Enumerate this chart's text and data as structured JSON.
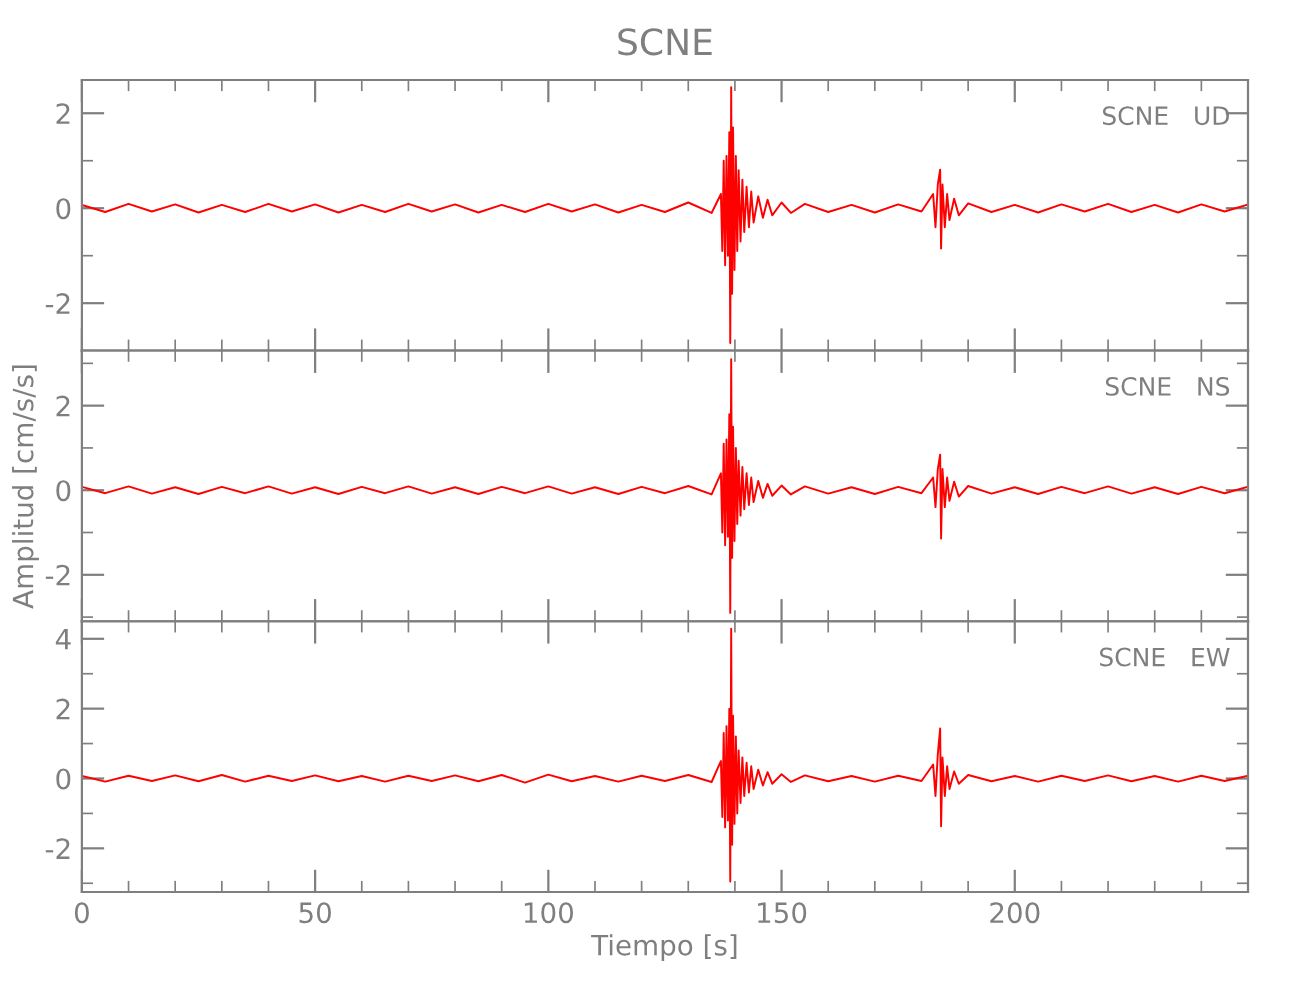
{
  "chart_data": [
    {
      "type": "line",
      "title": "SCNE",
      "annotations": [
        "SCNE   UD"
      ],
      "tick_labels": "y",
      "xlim": [
        0,
        250
      ],
      "xticks": [
        0,
        {
          "value": 10,
          "label": null
        },
        {
          "value": 20,
          "label": null
        },
        {
          "value": 30,
          "label": null
        },
        {
          "value": 40,
          "label": null
        },
        50,
        {
          "value": 60,
          "label": null
        },
        {
          "value": 70,
          "label": null
        },
        {
          "value": 80,
          "label": null
        },
        {
          "value": 90,
          "label": null
        },
        100,
        {
          "value": 110,
          "label": null
        },
        {
          "value": 120,
          "label": null
        },
        {
          "value": 130,
          "label": null
        },
        {
          "value": 140,
          "label": null
        },
        150,
        {
          "value": 160,
          "label": null
        },
        {
          "value": 170,
          "label": null
        },
        {
          "value": 180,
          "label": null
        },
        {
          "value": 190,
          "label": null
        },
        200,
        {
          "value": 210,
          "label": null
        },
        {
          "value": 220,
          "label": null
        },
        {
          "value": 230,
          "label": null
        },
        {
          "value": 240,
          "label": null
        }
      ],
      "ylim": [
        -3,
        2.7
      ],
      "yticks": [
        {
          "value": -3,
          "label": null
        },
        -2,
        {
          "value": -1,
          "label": null
        },
        0,
        {
          "value": 1,
          "label": null
        },
        2
      ],
      "x": [
        0,
        5,
        10,
        15,
        20,
        25,
        30,
        35,
        40,
        45,
        50,
        55,
        60,
        65,
        70,
        75,
        80,
        85,
        90,
        95,
        100,
        105,
        110,
        115,
        120,
        125,
        130,
        135,
        137,
        137.3,
        137.6,
        137.9,
        138.2,
        138.5,
        138.8,
        139,
        139.2,
        139.4,
        139.6,
        139.9,
        140.2,
        140.5,
        140.8,
        141.2,
        141.6,
        142,
        142.5,
        143,
        143.5,
        144,
        145,
        146,
        147,
        148,
        150,
        152,
        155,
        160,
        165,
        170,
        175,
        180,
        182.5,
        183,
        183.5,
        184,
        184.2,
        184.5,
        185,
        185.5,
        186,
        187,
        188,
        190,
        195,
        200,
        205,
        210,
        215,
        220,
        225,
        230,
        235,
        240,
        245,
        250
      ],
      "series": [
        {
          "color": "#ff0000",
          "values": [
            0.07,
            -0.08,
            0.09,
            -0.07,
            0.08,
            -0.09,
            0.07,
            -0.08,
            0.09,
            -0.07,
            0.08,
            -0.09,
            0.07,
            -0.08,
            0.09,
            -0.07,
            0.08,
            -0.09,
            0.07,
            -0.08,
            0.09,
            -0.07,
            0.08,
            -0.09,
            0.07,
            -0.08,
            0.12,
            -0.1,
            0.3,
            -0.9,
            1.0,
            -1.2,
            1.1,
            -1.0,
            1.6,
            -2.84,
            2.55,
            -1.8,
            1.7,
            -1.3,
            1.1,
            -0.9,
            0.8,
            -0.7,
            0.6,
            -0.5,
            0.45,
            -0.4,
            0.35,
            -0.3,
            0.25,
            -0.2,
            0.18,
            -0.15,
            0.12,
            -0.1,
            0.09,
            -0.08,
            0.07,
            -0.09,
            0.08,
            -0.07,
            0.3,
            -0.4,
            0.5,
            0.81,
            -0.85,
            0.5,
            -0.4,
            0.3,
            -0.25,
            0.2,
            -0.15,
            0.1,
            -0.08,
            0.07,
            -0.09,
            0.08,
            -0.07,
            0.09,
            -0.08,
            0.07,
            -0.09,
            0.08,
            -0.07,
            0.08
          ]
        }
      ]
    },
    {
      "type": "line",
      "ylabel": "Amplitud [cm/s/s]",
      "annotations": [
        "SCNE   NS"
      ],
      "tick_labels": "y",
      "xlim": [
        0,
        250
      ],
      "xticks": [
        0,
        {
          "value": 10,
          "label": null
        },
        {
          "value": 20,
          "label": null
        },
        {
          "value": 30,
          "label": null
        },
        {
          "value": 40,
          "label": null
        },
        50,
        {
          "value": 60,
          "label": null
        },
        {
          "value": 70,
          "label": null
        },
        {
          "value": 80,
          "label": null
        },
        {
          "value": 90,
          "label": null
        },
        100,
        {
          "value": 110,
          "label": null
        },
        {
          "value": 120,
          "label": null
        },
        {
          "value": 130,
          "label": null
        },
        {
          "value": 140,
          "label": null
        },
        150,
        {
          "value": 160,
          "label": null
        },
        {
          "value": 170,
          "label": null
        },
        {
          "value": 180,
          "label": null
        },
        {
          "value": 190,
          "label": null
        },
        200,
        {
          "value": 210,
          "label": null
        },
        {
          "value": 220,
          "label": null
        },
        {
          "value": 230,
          "label": null
        },
        {
          "value": 240,
          "label": null
        }
      ],
      "ylim": [
        -3.1,
        3.3
      ],
      "yticks": [
        {
          "value": -3,
          "label": null
        },
        -2,
        {
          "value": -1,
          "label": null
        },
        0,
        {
          "value": 1,
          "label": null
        },
        2,
        {
          "value": 3,
          "label": null
        }
      ],
      "x": [
        0,
        5,
        10,
        15,
        20,
        25,
        30,
        35,
        40,
        45,
        50,
        55,
        60,
        65,
        70,
        75,
        80,
        85,
        90,
        95,
        100,
        105,
        110,
        115,
        120,
        125,
        130,
        135,
        137,
        137.3,
        137.6,
        137.9,
        138.2,
        138.5,
        138.8,
        139,
        139.2,
        139.4,
        139.6,
        139.9,
        140.2,
        140.5,
        140.8,
        141.2,
        141.6,
        142,
        142.5,
        143,
        143.5,
        144,
        145,
        146,
        147,
        148,
        150,
        152,
        155,
        160,
        165,
        170,
        175,
        180,
        182.5,
        183,
        183.5,
        184,
        184.2,
        184.5,
        185,
        185.5,
        186,
        187,
        188,
        190,
        195,
        200,
        205,
        210,
        215,
        220,
        225,
        230,
        235,
        240,
        245,
        250
      ],
      "series": [
        {
          "color": "#ff0000",
          "values": [
            0.08,
            -0.07,
            0.09,
            -0.08,
            0.07,
            -0.09,
            0.08,
            -0.07,
            0.09,
            -0.08,
            0.07,
            -0.09,
            0.08,
            -0.07,
            0.09,
            -0.08,
            0.07,
            -0.09,
            0.08,
            -0.07,
            0.09,
            -0.08,
            0.07,
            -0.09,
            0.08,
            -0.07,
            0.1,
            -0.1,
            0.4,
            -1.0,
            1.1,
            -1.3,
            1.2,
            -1.1,
            1.8,
            -2.9,
            3.1,
            -1.6,
            1.5,
            -1.2,
            1.0,
            -0.8,
            0.7,
            -0.6,
            0.55,
            -0.45,
            0.4,
            -0.35,
            0.3,
            -0.28,
            0.22,
            -0.18,
            0.15,
            -0.13,
            0.11,
            -0.1,
            0.09,
            -0.08,
            0.07,
            -0.09,
            0.08,
            -0.07,
            0.3,
            -0.4,
            0.5,
            0.84,
            -1.14,
            0.5,
            -0.4,
            0.3,
            -0.25,
            0.2,
            -0.15,
            0.1,
            -0.08,
            0.07,
            -0.09,
            0.08,
            -0.07,
            0.09,
            -0.08,
            0.07,
            -0.09,
            0.08,
            -0.07,
            0.08
          ]
        }
      ]
    },
    {
      "type": "line",
      "xlabel": "Tiempo [s]",
      "annotations": [
        "SCNE   EW"
      ],
      "xlim": [
        0,
        250
      ],
      "xticks": [
        0,
        {
          "value": 10,
          "label": null
        },
        {
          "value": 20,
          "label": null
        },
        {
          "value": 30,
          "label": null
        },
        {
          "value": 40,
          "label": null
        },
        50,
        {
          "value": 60,
          "label": null
        },
        {
          "value": 70,
          "label": null
        },
        {
          "value": 80,
          "label": null
        },
        {
          "value": 90,
          "label": null
        },
        100,
        {
          "value": 110,
          "label": null
        },
        {
          "value": 120,
          "label": null
        },
        {
          "value": 130,
          "label": null
        },
        {
          "value": 140,
          "label": null
        },
        150,
        {
          "value": 160,
          "label": null
        },
        {
          "value": 170,
          "label": null
        },
        {
          "value": 180,
          "label": null
        },
        {
          "value": 190,
          "label": null
        },
        200,
        {
          "value": 210,
          "label": null
        },
        {
          "value": 220,
          "label": null
        },
        {
          "value": 230,
          "label": null
        },
        {
          "value": 240,
          "label": null
        }
      ],
      "ylim": [
        -3.25,
        4.5
      ],
      "yticks": [
        {
          "value": -3,
          "label": null
        },
        -2,
        {
          "value": -1,
          "label": null
        },
        0,
        {
          "value": 1,
          "label": null
        },
        2,
        {
          "value": 3,
          "label": null
        },
        4
      ],
      "x": [
        0,
        5,
        10,
        15,
        20,
        25,
        30,
        35,
        40,
        45,
        50,
        55,
        60,
        65,
        70,
        75,
        80,
        85,
        90,
        95,
        100,
        105,
        110,
        115,
        120,
        125,
        130,
        135,
        137,
        137.3,
        137.6,
        137.9,
        138.2,
        138.5,
        138.8,
        139,
        139.2,
        139.4,
        139.6,
        139.9,
        140.2,
        140.5,
        140.8,
        141.2,
        141.6,
        142,
        142.5,
        143,
        143.5,
        144,
        145,
        146,
        147,
        148,
        150,
        152,
        155,
        160,
        165,
        170,
        175,
        180,
        182.5,
        183,
        183.5,
        184,
        184.2,
        184.5,
        185,
        185.5,
        186,
        187,
        188,
        190,
        195,
        200,
        205,
        210,
        215,
        220,
        225,
        230,
        235,
        240,
        245,
        250
      ],
      "series": [
        {
          "color": "#ff0000",
          "values": [
            0.07,
            -0.09,
            0.08,
            -0.07,
            0.09,
            -0.08,
            0.1,
            -0.09,
            0.08,
            -0.07,
            0.09,
            -0.08,
            0.07,
            -0.09,
            0.08,
            -0.07,
            0.09,
            -0.08,
            0.1,
            -0.12,
            0.11,
            -0.08,
            0.07,
            -0.09,
            0.08,
            -0.07,
            0.1,
            -0.1,
            0.5,
            -1.1,
            1.3,
            -1.4,
            1.5,
            -1.2,
            2.0,
            -2.95,
            4.29,
            -1.9,
            1.8,
            -1.3,
            1.2,
            -1.0,
            0.8,
            -0.7,
            0.6,
            -0.5,
            0.45,
            -0.4,
            0.35,
            -0.3,
            0.25,
            -0.2,
            0.18,
            -0.15,
            0.12,
            -0.1,
            0.09,
            -0.08,
            0.07,
            -0.09,
            0.08,
            -0.07,
            0.4,
            -0.5,
            0.7,
            1.43,
            -1.37,
            0.6,
            -0.5,
            0.35,
            -0.3,
            0.2,
            -0.15,
            0.1,
            -0.08,
            0.07,
            -0.09,
            0.08,
            -0.07,
            0.09,
            -0.08,
            0.07,
            -0.09,
            0.08,
            -0.07,
            0.08
          ]
        }
      ]
    }
  ]
}
